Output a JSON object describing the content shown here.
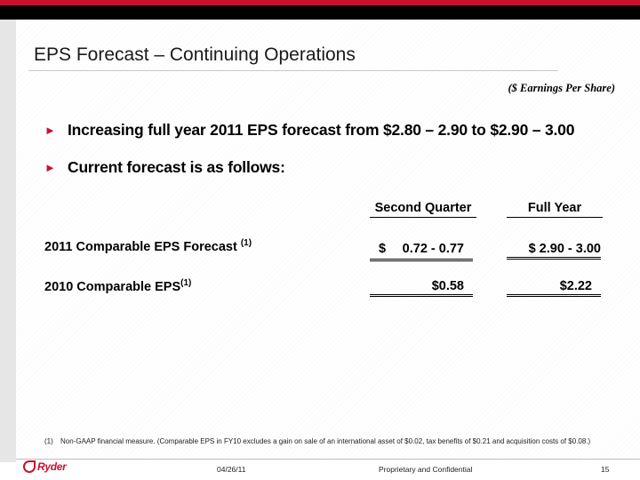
{
  "slide": {
    "title": "EPS Forecast – Continuing Operations",
    "units_note": "($ Earnings Per Share)",
    "bullets": [
      "Increasing full year 2011 EPS forecast from $2.80 – 2.90 to $2.90 – 3.00",
      "Current forecast is as follows:"
    ],
    "table": {
      "headers": [
        "Second Quarter",
        "Full Year"
      ],
      "rows": [
        {
          "label": "2011 Comparable EPS Forecast ",
          "sup": "(1)",
          "q_dollar": "$",
          "q_value": "0.72 - 0.77",
          "fy_value": "$ 2.90 - 3.00"
        },
        {
          "label": "2010 Comparable EPS",
          "sup": "(1)",
          "q_value": "$0.58",
          "fy_value": "$2.22"
        }
      ]
    },
    "footnote": {
      "number": "(1)",
      "text": "Non-GAAP financial measure. (Comparable EPS in FY10 excludes a gain on sale of an international asset of $0.02, tax benefits of $0.21 and acquisition costs of $0.08.)"
    }
  },
  "footer": {
    "logo_text": "Ryder",
    "date": "04/26/11",
    "confidential": "Proprietary and Confidential",
    "page_number": "15"
  },
  "colors": {
    "accent_red": "#c8102e",
    "header_black": "#000000"
  },
  "icons": {
    "bullet": "triangle-right-icon",
    "logo": "ryder-logo-icon"
  }
}
